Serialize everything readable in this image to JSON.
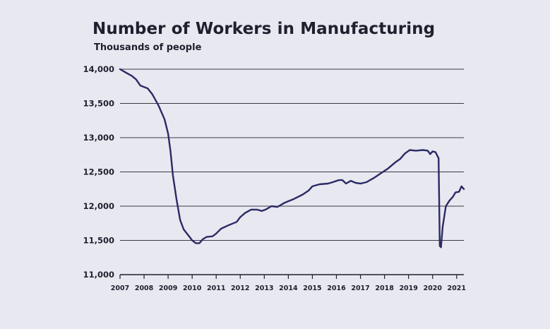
{
  "chart_data": {
    "type": "line",
    "title": "Number of Workers in Manufacturing",
    "subtitle": "Thousands of people",
    "xlabel": "",
    "ylabel": "",
    "xlim": [
      2007,
      2021.3
    ],
    "ylim": [
      11000,
      14000
    ],
    "y_ticks": [
      11000,
      11500,
      12000,
      12500,
      13000,
      13500,
      14000
    ],
    "y_tick_labels": [
      "11,000",
      "11,500",
      "12,000",
      "12,500",
      "13,000",
      "13,500",
      "14,000"
    ],
    "x_ticks": [
      2007,
      2008,
      2009,
      2010,
      2011,
      2012,
      2013,
      2014,
      2015,
      2016,
      2017,
      2018,
      2019,
      2020,
      2021
    ],
    "x_tick_labels": [
      "2007",
      "2008",
      "2009",
      "2010",
      "2011",
      "2012",
      "2013",
      "2014",
      "2015",
      "2016",
      "2017",
      "2018",
      "2019",
      "2020",
      "2021"
    ],
    "grid": "horizontal",
    "line_color": "#2a2a66",
    "grid_color": "#3a3a4a",
    "series": [
      {
        "values": [
          [
            2007.0,
            14000
          ],
          [
            2007.25,
            13950
          ],
          [
            2007.5,
            13900
          ],
          [
            2007.67,
            13850
          ],
          [
            2007.85,
            13760
          ],
          [
            2008.0,
            13740
          ],
          [
            2008.15,
            13720
          ],
          [
            2008.35,
            13630
          ],
          [
            2008.6,
            13470
          ],
          [
            2008.85,
            13270
          ],
          [
            2009.0,
            13060
          ],
          [
            2009.1,
            12800
          ],
          [
            2009.2,
            12450
          ],
          [
            2009.35,
            12100
          ],
          [
            2009.5,
            11800
          ],
          [
            2009.65,
            11660
          ],
          [
            2009.85,
            11570
          ],
          [
            2010.0,
            11500
          ],
          [
            2010.15,
            11460
          ],
          [
            2010.3,
            11460
          ],
          [
            2010.45,
            11520
          ],
          [
            2010.6,
            11550
          ],
          [
            2010.85,
            11560
          ],
          [
            2011.0,
            11600
          ],
          [
            2011.2,
            11670
          ],
          [
            2011.5,
            11720
          ],
          [
            2011.85,
            11770
          ],
          [
            2012.0,
            11840
          ],
          [
            2012.2,
            11900
          ],
          [
            2012.45,
            11950
          ],
          [
            2012.7,
            11950
          ],
          [
            2012.9,
            11930
          ],
          [
            2013.05,
            11950
          ],
          [
            2013.3,
            12000
          ],
          [
            2013.55,
            11990
          ],
          [
            2013.85,
            12050
          ],
          [
            2014.2,
            12100
          ],
          [
            2014.6,
            12170
          ],
          [
            2014.85,
            12230
          ],
          [
            2015.0,
            12290
          ],
          [
            2015.3,
            12320
          ],
          [
            2015.65,
            12330
          ],
          [
            2015.85,
            12350
          ],
          [
            2016.1,
            12380
          ],
          [
            2016.25,
            12380
          ],
          [
            2016.4,
            12330
          ],
          [
            2016.6,
            12370
          ],
          [
            2016.8,
            12340
          ],
          [
            2017.0,
            12330
          ],
          [
            2017.25,
            12350
          ],
          [
            2017.55,
            12410
          ],
          [
            2017.85,
            12480
          ],
          [
            2018.15,
            12550
          ],
          [
            2018.45,
            12640
          ],
          [
            2018.65,
            12690
          ],
          [
            2018.85,
            12770
          ],
          [
            2019.05,
            12820
          ],
          [
            2019.3,
            12810
          ],
          [
            2019.6,
            12820
          ],
          [
            2019.8,
            12810
          ],
          [
            2019.9,
            12760
          ],
          [
            2020.0,
            12800
          ],
          [
            2020.12,
            12790
          ],
          [
            2020.25,
            12700
          ],
          [
            2020.3,
            11420
          ],
          [
            2020.35,
            11400
          ],
          [
            2020.42,
            11700
          ],
          [
            2020.55,
            12000
          ],
          [
            2020.7,
            12080
          ],
          [
            2020.85,
            12140
          ],
          [
            2020.95,
            12200
          ],
          [
            2021.1,
            12210
          ],
          [
            2021.2,
            12290
          ],
          [
            2021.3,
            12250
          ]
        ]
      }
    ]
  }
}
